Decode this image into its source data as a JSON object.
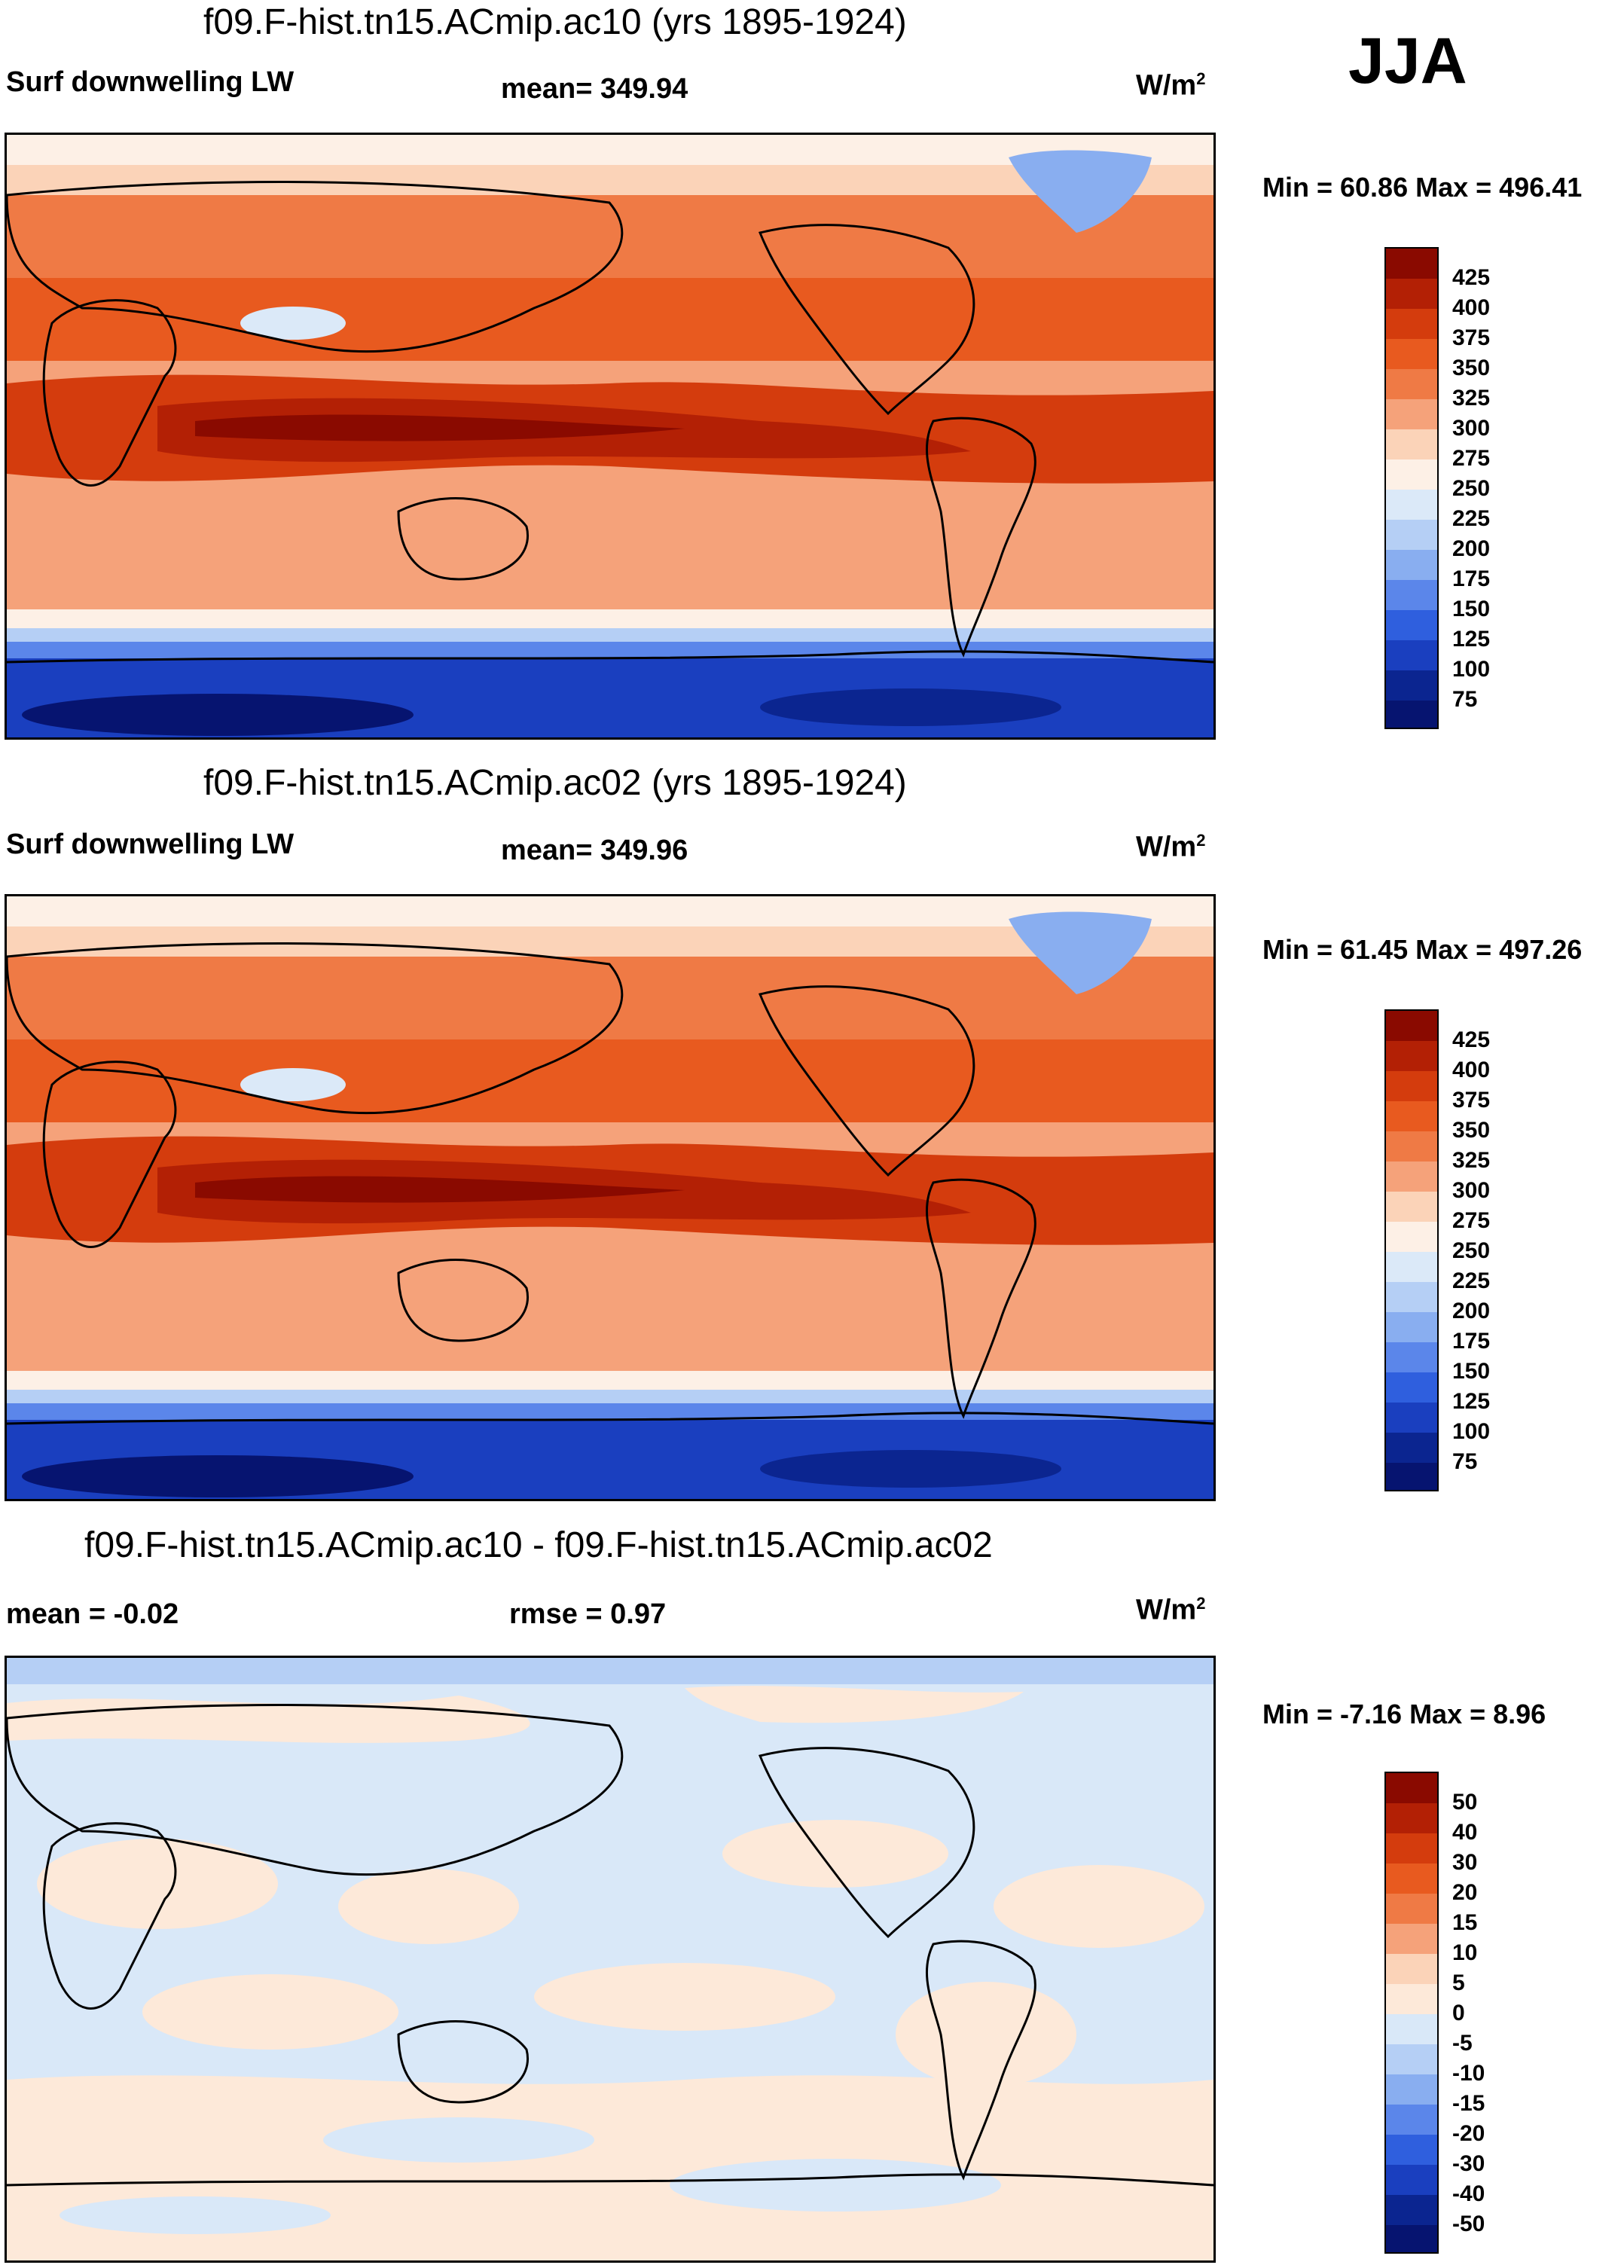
{
  "season": "JJA",
  "panels": [
    {
      "title": "f09.F-hist.tn15.ACmip.ac10 (yrs 1895-1924)",
      "left_label": "Surf downwelling LW",
      "mid_label": "mean= 349.94",
      "units": "W/m",
      "units_sup": "2",
      "minmax": "Min =  60.86 Max = 496.41",
      "colorbar": {
        "labels": [
          "425",
          "400",
          "375",
          "350",
          "325",
          "300",
          "275",
          "250",
          "225",
          "200",
          "175",
          "150",
          "125",
          "100",
          "75"
        ],
        "colors": [
          "#8a0a00",
          "#b32005",
          "#d43c0d",
          "#e85a1f",
          "#ef7a45",
          "#f5a27a",
          "#fbd3b8",
          "#fdf0e6",
          "#dbe9f8",
          "#b5cff5",
          "#89aef0",
          "#5b86ea",
          "#2f5fde",
          "#1a3fbf",
          "#0b2590",
          "#061470"
        ]
      }
    },
    {
      "title": "f09.F-hist.tn15.ACmip.ac02 (yrs 1895-1924)",
      "left_label": "Surf downwelling LW",
      "mid_label": "mean= 349.96",
      "units": "W/m",
      "units_sup": "2",
      "minmax": "Min =  61.45 Max = 497.26",
      "colorbar": {
        "labels": [
          "425",
          "400",
          "375",
          "350",
          "325",
          "300",
          "275",
          "250",
          "225",
          "200",
          "175",
          "150",
          "125",
          "100",
          "75"
        ],
        "colors": [
          "#8a0a00",
          "#b32005",
          "#d43c0d",
          "#e85a1f",
          "#ef7a45",
          "#f5a27a",
          "#fbd3b8",
          "#fdf0e6",
          "#dbe9f8",
          "#b5cff5",
          "#89aef0",
          "#5b86ea",
          "#2f5fde",
          "#1a3fbf",
          "#0b2590",
          "#061470"
        ]
      }
    },
    {
      "title": "f09.F-hist.tn15.ACmip.ac10 - f09.F-hist.tn15.ACmip.ac02",
      "left_label": "mean =  -0.02",
      "mid_label": "rmse =   0.97",
      "units": "W/m",
      "units_sup": "2",
      "minmax": "Min =  -7.16 Max =   8.96",
      "colorbar": {
        "labels": [
          "50",
          "40",
          "30",
          "20",
          "15",
          "10",
          "5",
          "0",
          "-5",
          "-10",
          "-15",
          "-20",
          "-30",
          "-40",
          "-50"
        ],
        "colors": [
          "#8a0a00",
          "#b32005",
          "#d43c0d",
          "#e85a1f",
          "#ef7a45",
          "#f5a27a",
          "#fbd3b8",
          "#fde9d9",
          "#d9e8f8",
          "#b5cff5",
          "#89aef0",
          "#5b86ea",
          "#2f5fde",
          "#1a3fbf",
          "#0b2590",
          "#061470"
        ]
      }
    }
  ]
}
